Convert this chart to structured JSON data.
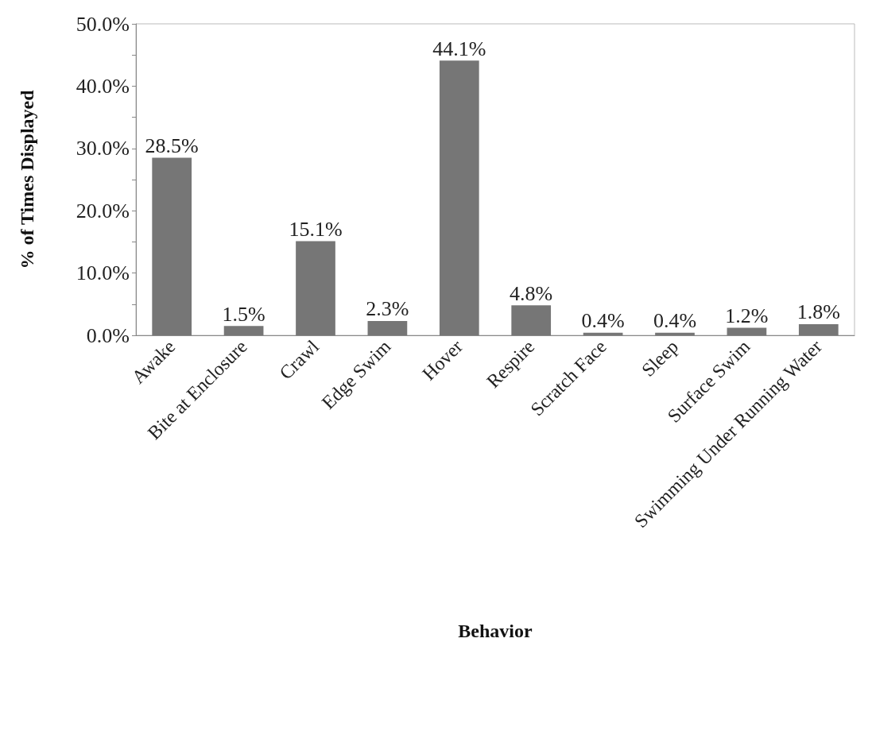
{
  "chart_data": {
    "type": "bar",
    "xlabel": "Behavior",
    "ylabel": "% of Times Displayed",
    "categories": [
      "Awake",
      "Bite at Enclosure",
      "Crawl",
      "Edge Swim",
      "Hover",
      "Respire",
      "Scratch Face",
      "Sleep",
      "Surface Swim",
      "Swimming Under Running Water"
    ],
    "values": [
      28.5,
      1.5,
      15.1,
      2.3,
      44.1,
      4.8,
      0.4,
      0.4,
      1.2,
      1.8
    ],
    "value_labels": [
      "28.5%",
      "1.5%",
      "15.1%",
      "2.3%",
      "44.1%",
      "4.8%",
      "0.4%",
      "0.4%",
      "1.2%",
      "1.8%"
    ],
    "color": "#767676",
    "ylim": [
      0,
      50
    ],
    "yticks": [
      {
        "value": 0,
        "label": "0.0%"
      },
      {
        "value": 5,
        "label": null
      },
      {
        "value": 10,
        "label": "10.0%"
      },
      {
        "value": 15,
        "label": null
      },
      {
        "value": 20,
        "label": "20.0%"
      },
      {
        "value": 25,
        "label": null
      },
      {
        "value": 30,
        "label": "30.0%"
      },
      {
        "value": 35,
        "label": null
      },
      {
        "value": 40,
        "label": "40.0%"
      },
      {
        "value": 45,
        "label": null
      },
      {
        "value": 50,
        "label": "50.0%"
      }
    ],
    "grid": false
  }
}
